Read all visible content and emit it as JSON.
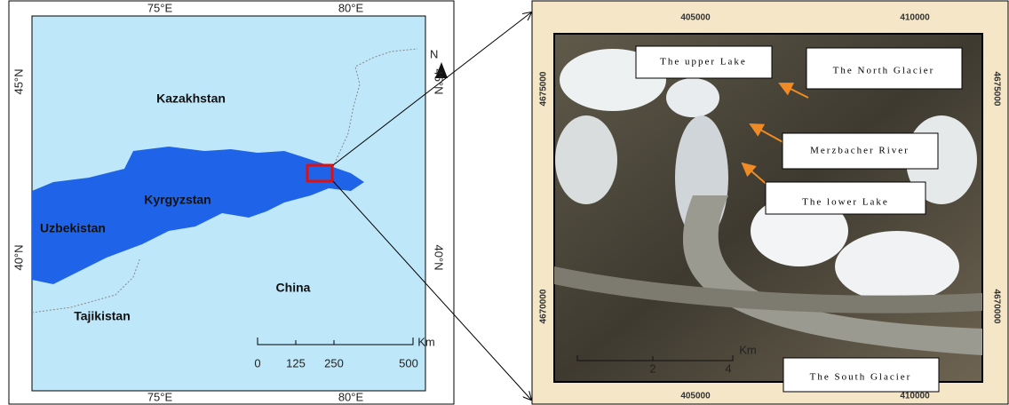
{
  "overview_map": {
    "top_ticks": [
      "75°E",
      "80°E"
    ],
    "bottom_ticks": [
      "75°E",
      "80°E"
    ],
    "left_ticks": [
      "45°N",
      "40°N"
    ],
    "right_ticks": [
      "45°N",
      "40°N"
    ],
    "countries": [
      "Kazakhstan",
      "Kyrgyzstan",
      "Uzbekistan",
      "China",
      "Tajikistan"
    ],
    "scale_labels": [
      "0",
      "125",
      "250",
      "500"
    ],
    "scale_unit": "Km",
    "north": "N"
  },
  "detail_image": {
    "top_ticks": [
      "405000",
      "410000"
    ],
    "bottom_ticks": [
      "405000",
      "410000"
    ],
    "left_ticks": [
      "4675000",
      "4670000"
    ],
    "right_ticks": [
      "4675000",
      "4670000"
    ],
    "labels": [
      "The upper Lake",
      "The North Glacier",
      "Merzbacher River",
      "The lower Lake",
      "The South Glacier"
    ],
    "scale_labels": [
      "2",
      "4"
    ],
    "scale_unit": "Km"
  }
}
